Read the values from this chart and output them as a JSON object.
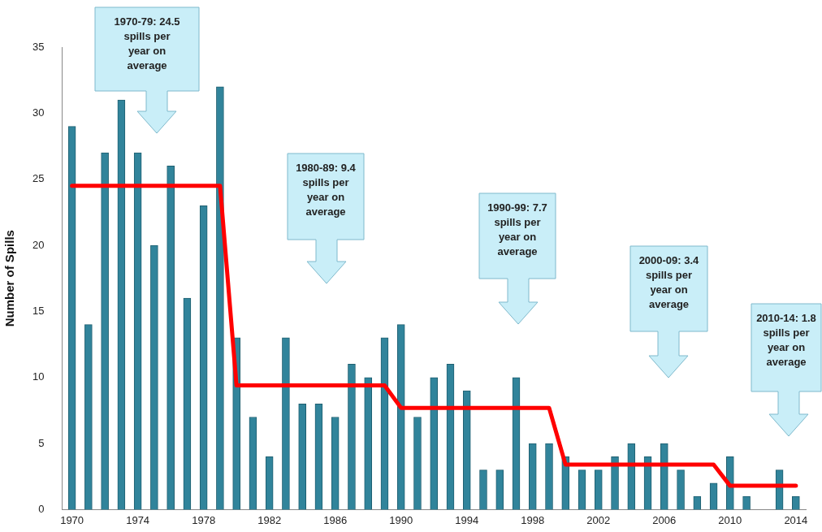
{
  "chart_data": {
    "type": "bar",
    "ylabel": "Number of Spills",
    "x": [
      1970,
      1971,
      1972,
      1973,
      1974,
      1975,
      1976,
      1977,
      1978,
      1979,
      1980,
      1981,
      1982,
      1983,
      1984,
      1985,
      1986,
      1987,
      1988,
      1989,
      1990,
      1991,
      1992,
      1993,
      1994,
      1995,
      1996,
      1997,
      1998,
      1999,
      2000,
      2001,
      2002,
      2003,
      2004,
      2005,
      2006,
      2007,
      2008,
      2009,
      2010,
      2011,
      2012,
      2013,
      2014
    ],
    "series": [
      {
        "color": "#31849b",
        "values": [
          29,
          14,
          27,
          31,
          27,
          20,
          26,
          16,
          23,
          32,
          13,
          7,
          4,
          13,
          8,
          8,
          7,
          11,
          10,
          13,
          14,
          7,
          10,
          11,
          9,
          3,
          3,
          10,
          5,
          5,
          4,
          3,
          3,
          4,
          5,
          4,
          5,
          3,
          1,
          2,
          4,
          1,
          0,
          3,
          1
        ]
      },
      {
        "type": "line",
        "color": "#ff0000",
        "x": [
          1970,
          1979,
          1980,
          1989,
          1990,
          1999,
          2000,
          2009,
          2010,
          2014
        ],
        "values": [
          24.5,
          24.5,
          9.4,
          9.4,
          7.7,
          7.7,
          3.4,
          3.4,
          1.8,
          1.8
        ]
      }
    ],
    "marker": "none",
    "xlim": [
      1969.4,
      2014.6
    ],
    "xticks": [
      1970,
      1974,
      1978,
      1982,
      1986,
      1990,
      1994,
      1998,
      2002,
      2006,
      2010,
      2014
    ],
    "ylim": [
      0,
      35
    ],
    "yticks": [
      0,
      5,
      10,
      15,
      20,
      25,
      30,
      35
    ],
    "annotations": [
      "1970-79: 24.5 spills per year on average",
      "1980-89: 9.4 spills per year on average",
      "1990-99: 7.7 spills per year on average",
      "2000-09: 3.4 spills per year on average",
      "2010-14: 1.8 spills per year on average"
    ]
  }
}
